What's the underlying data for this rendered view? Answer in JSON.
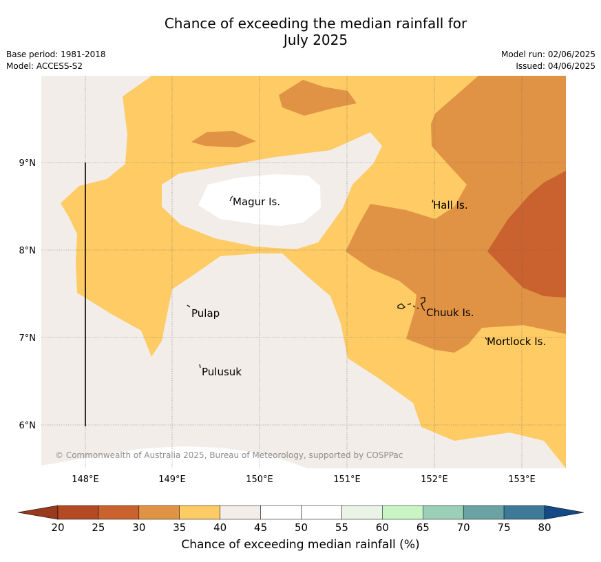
{
  "title": {
    "line1": "Chance of exceeding the median rainfall for",
    "line2": "July 2025"
  },
  "meta": {
    "base_period": "Base period: 1981-2018",
    "model": "Model: ACCESS-S2",
    "model_run": "Model run: 02/06/2025",
    "issued": "Issued: 04/06/2025"
  },
  "map": {
    "lon_ticks": [
      "148°E",
      "149°E",
      "150°E",
      "151°E",
      "152°E",
      "153°E"
    ],
    "lat_ticks": [
      "9°N",
      "8°N",
      "7°N",
      "6°N"
    ],
    "places": [
      {
        "name": "Magur Is."
      },
      {
        "name": "Hall Is."
      },
      {
        "name": "Pulap"
      },
      {
        "name": "Chuuk Is."
      },
      {
        "name": "Mortlock Is."
      },
      {
        "name": "Pulusuk"
      }
    ],
    "copyright": "© Commonwealth of Australia 2025, Bureau of Meteorology, supported by COSPPac"
  },
  "colorbar": {
    "label": "Chance of exceeding median rainfall (%)",
    "ticks": [
      "20",
      "25",
      "30",
      "35",
      "40",
      "45",
      "50",
      "55",
      "60",
      "65",
      "70",
      "75",
      "80"
    ],
    "colors": [
      "#b34a24",
      "#c9622e",
      "#e09344",
      "#fecb65",
      "#f2ede8",
      "#ffffff",
      "#ffffff",
      "#eaf4e6",
      "#c9f5c4",
      "#9ccfb7",
      "#6aa3a4",
      "#3e7a98"
    ],
    "under_color": "#9a3a1c",
    "over_color": "#134a86"
  }
}
